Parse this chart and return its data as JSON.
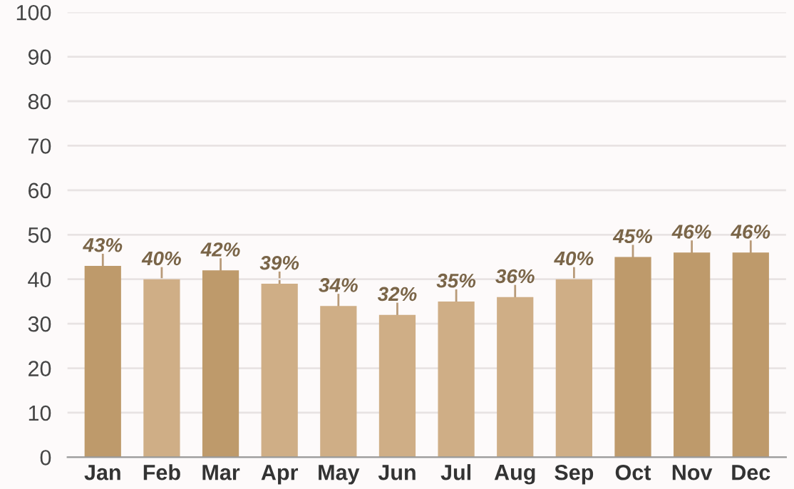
{
  "chart_data": {
    "type": "bar",
    "categories": [
      "Jan",
      "Feb",
      "Mar",
      "Apr",
      "May",
      "Jun",
      "Jul",
      "Aug",
      "Sep",
      "Oct",
      "Nov",
      "Dec"
    ],
    "values": [
      43,
      40,
      42,
      39,
      34,
      32,
      35,
      36,
      40,
      45,
      46,
      46
    ],
    "colors": [
      "#be9a6b",
      "#cfae86",
      "#be9a6b",
      "#cfae86",
      "#cfae86",
      "#cfae86",
      "#cfae86",
      "#cfae86",
      "#cfae86",
      "#be9a6b",
      "#be9a6b",
      "#be9a6b"
    ],
    "errors": [
      [
        43,
        45.5
      ],
      [
        40,
        42.5
      ],
      [
        42,
        44.5
      ],
      [
        39,
        41.5
      ],
      [
        34,
        36.5
      ],
      [
        32,
        34.5
      ],
      [
        35,
        37.5
      ],
      [
        36,
        38.5
      ],
      [
        40,
        42.5
      ],
      [
        45,
        47.5
      ],
      [
        46,
        48.5
      ],
      [
        46,
        48.5
      ]
    ],
    "value_labels": [
      "43%",
      "40%",
      "42%",
      "39%",
      "34%",
      "32%",
      "35%",
      "36%",
      "40%",
      "45%",
      "46%",
      "46%"
    ],
    "ylim": [
      0,
      100
    ],
    "yticks": [
      0,
      10,
      20,
      30,
      40,
      50,
      60,
      70,
      80,
      90,
      100
    ],
    "grid": "y",
    "legend": false
  }
}
